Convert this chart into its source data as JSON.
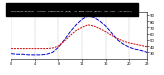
{
  "hours": [
    0,
    1,
    2,
    3,
    4,
    5,
    6,
    7,
    8,
    9,
    10,
    11,
    12,
    13,
    14,
    15,
    16,
    17,
    18,
    19,
    20,
    21,
    22,
    23
  ],
  "temp_red": [
    36,
    36,
    36,
    36,
    36,
    36,
    36,
    37,
    40,
    48,
    57,
    65,
    70,
    74,
    72,
    68,
    63,
    57,
    52,
    48,
    45,
    43,
    41,
    39
  ],
  "thsw_blue": [
    28,
    27,
    27,
    26,
    26,
    26,
    27,
    30,
    38,
    50,
    63,
    74,
    83,
    88,
    86,
    80,
    72,
    61,
    50,
    43,
    38,
    35,
    33,
    30
  ],
  "title_line1": "Milwaukee Weather  Outdoor Temperature (Red)",
  "title_line2": "vs THSW Index (Blue)  per Hour  (24 Hours)",
  "xlim": [
    0,
    23
  ],
  "ylim": [
    20,
    95
  ],
  "ytick_vals": [
    30,
    40,
    50,
    60,
    70,
    80,
    90
  ],
  "ytick_labels": [
    "30",
    "40",
    "50",
    "60",
    "70",
    "80",
    "90"
  ],
  "xtick_positions": [
    0,
    4,
    8,
    12,
    16,
    20,
    23
  ],
  "xtick_labels": [
    "0",
    "4",
    "8",
    "12",
    "16",
    "20",
    "23"
  ],
  "bg_color": "#ffffff",
  "title_bg_color": "#000000",
  "title_text_color": "#ffffff",
  "red_color": "#cc0000",
  "blue_color": "#0000cc",
  "grid_color": "#888888",
  "spine_color": "#000000"
}
